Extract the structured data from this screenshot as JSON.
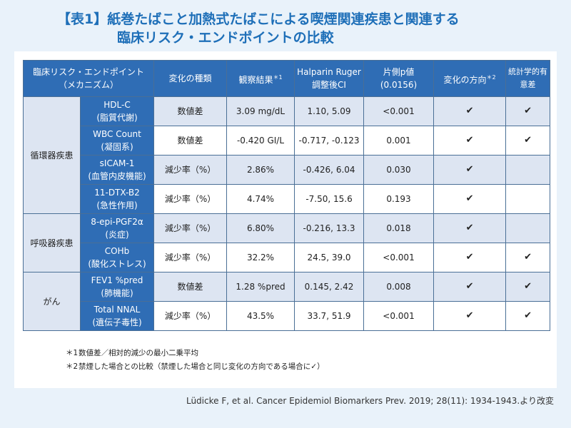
{
  "title": {
    "line1": "【表1】紙巻たばこと加熱式たばこによる喫煙関連疾患と関連する",
    "line2": "臨床リスク・エンドポイントの比較"
  },
  "table": {
    "headers": {
      "endpoint_line1": "臨床リスク・エンドポイント",
      "endpoint_line2": "（メカニズム）",
      "change_type": "変化の種類",
      "observed": "観察結果",
      "observed_mark": "＊1",
      "halparin_line1": "Halparin Ruger",
      "halparin_line2": "調整後CI",
      "pvalue_line1": "片側p値",
      "pvalue_line2": "(0.0156)",
      "direction": "変化の方向",
      "direction_mark": "＊2",
      "significance": "統計学的有意差"
    },
    "categories": [
      "循環器疾患",
      "呼吸器疾患",
      "がん"
    ],
    "rows": [
      {
        "name": "HDL-C",
        "mech": "(脂質代謝)",
        "type": "数値差",
        "observed": "3.09 mg/dL",
        "ci": "1.10, 5.09",
        "p": "<0.001",
        "direction": "✔",
        "significant": "✔"
      },
      {
        "name": "WBC Count",
        "mech": "(凝固系)",
        "type": "数値差",
        "observed": "-0.420 GI/L",
        "ci": "-0.717, -0.123",
        "p": "0.001",
        "direction": "✔",
        "significant": "✔"
      },
      {
        "name": "sICAM-1",
        "mech": "(血管内皮機能)",
        "type": "減少率（%）",
        "observed": "2.86%",
        "ci": "-0.426, 6.04",
        "p": "0.030",
        "direction": "✔",
        "significant": ""
      },
      {
        "name": "11-DTX-B2",
        "mech": "(急性作用)",
        "type": "減少率（%）",
        "observed": "4.74%",
        "ci": "-7.50, 15.6",
        "p": "0.193",
        "direction": "✔",
        "significant": ""
      },
      {
        "name": "8-epi-PGF2α",
        "mech": "(炎症)",
        "type": "減少率（%）",
        "observed": "6.80%",
        "ci": "-0.216, 13.3",
        "p": "0.018",
        "direction": "✔",
        "significant": ""
      },
      {
        "name": "COHb",
        "mech": "(酸化ストレス)",
        "type": "減少率（%）",
        "observed": "32.2%",
        "ci": "24.5, 39.0",
        "p": "<0.001",
        "direction": "✔",
        "significant": "✔"
      },
      {
        "name": "FEV1 %pred",
        "mech": "(肺機能)",
        "type": "数値差",
        "observed": "1.28 %pred",
        "ci": "0.145, 2.42",
        "p": "0.008",
        "direction": "✔",
        "significant": "✔"
      },
      {
        "name": "Total NNAL",
        "mech": "(遺伝子毒性)",
        "type": "減少率（%）",
        "observed": "43.5%",
        "ci": "33.7, 51.9",
        "p": "<0.001",
        "direction": "✔",
        "significant": "✔"
      }
    ]
  },
  "notes": [
    {
      "mark": "＊1",
      "text": "数値差／相対的減少の最小二乗平均"
    },
    {
      "mark": "＊2",
      "text": "禁煙した場合との比較（禁煙した場合と同じ変化の方向である場合に✓）"
    }
  ],
  "source": "Lüdicke F, et al. Cancer Epidemiol Biomarkers Prev. 2019; 28(11): 1934-1943.より改変",
  "colors": {
    "background": "#e9f2fa",
    "title": "#1e6fb8",
    "header_bg": "#2f6db5",
    "zebra": "#dde5f2"
  }
}
